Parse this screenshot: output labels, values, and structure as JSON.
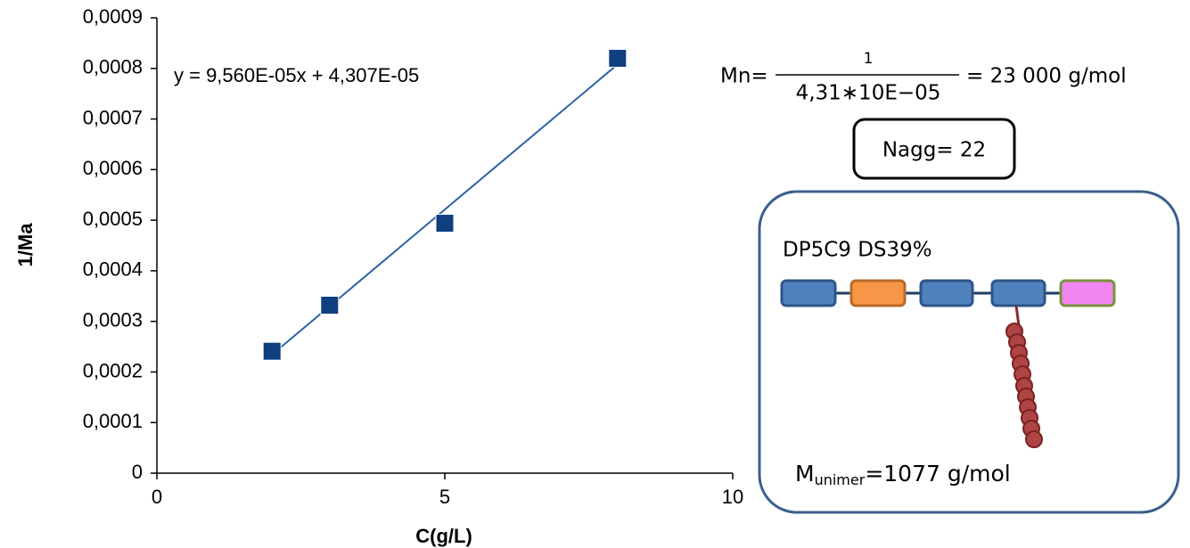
{
  "chart_data": {
    "type": "scatter",
    "x_label": "C(g/L)",
    "y_label": "1/Ma",
    "x": [
      2,
      3,
      5,
      8
    ],
    "series": [
      {
        "color": "#0f3f7f",
        "values": [
          0.000241,
          0.000332,
          0.000494,
          0.00082
        ]
      }
    ],
    "trendline": {
      "slope": 9.56e-05,
      "intercept": 4.307e-05,
      "color": "#2a64a8",
      "label": "y = 9,560E-05x + 4,307E-05"
    },
    "xlim": [
      0,
      10
    ],
    "xticks": [
      0,
      5,
      10
    ],
    "ylim": [
      0,
      0.0009
    ],
    "yticks": [
      {
        "value": 0,
        "label": "0"
      },
      {
        "value": 0.0001,
        "label": "0,0001"
      },
      {
        "value": 0.0002,
        "label": "0,0002"
      },
      {
        "value": 0.0003,
        "label": "0,0003"
      },
      {
        "value": 0.0004,
        "label": "0,0004"
      },
      {
        "value": 0.0005,
        "label": "0,0005"
      },
      {
        "value": 0.0006,
        "label": "0,0006"
      },
      {
        "value": 0.0007,
        "label": "0,0007"
      },
      {
        "value": 0.0008,
        "label": "0,0008"
      },
      {
        "value": 0.0009,
        "label": "0,0009"
      }
    ],
    "grid": false,
    "annotations": {
      "mn_prefix": "Mn=",
      "mn_numerator": "1",
      "mn_denominator": "4,31∗10E−05",
      "mn_result": "= 23 000 g/mol",
      "nagg": "Nagg= 22",
      "sample": "DP5C9 DS39%",
      "m": "M",
      "m_sub": "unimer",
      "m_value": "=1077 g/mol"
    }
  }
}
